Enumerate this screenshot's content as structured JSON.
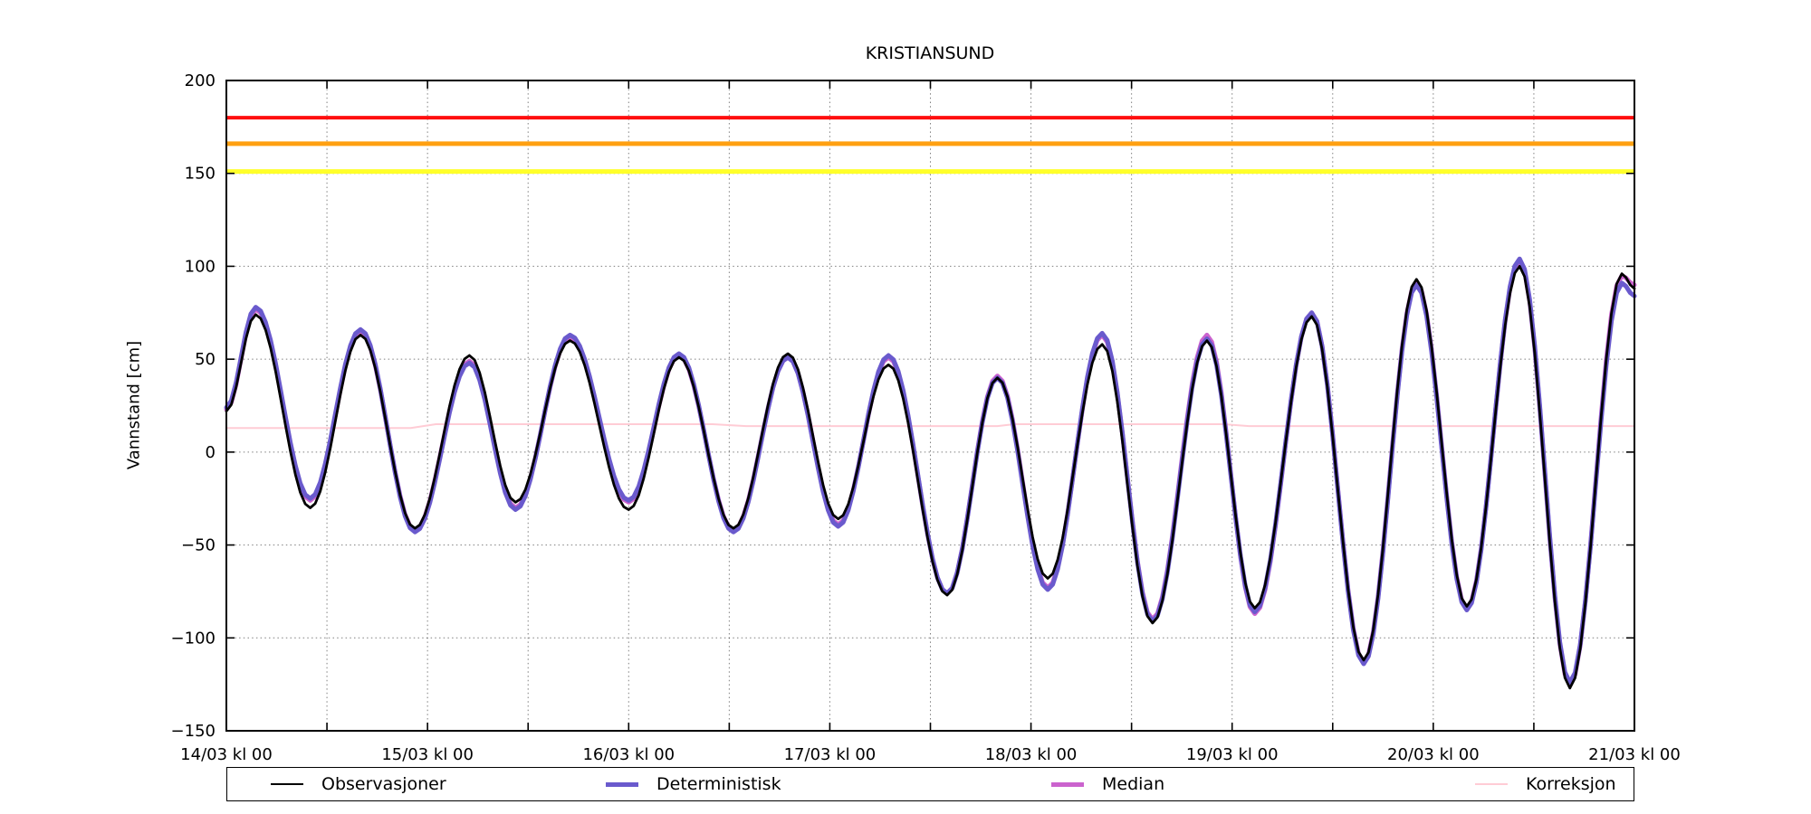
{
  "title": "KRISTIANSUND",
  "axes": {
    "ylabel": "Vannstand [cm]",
    "ylim": [
      -150,
      200
    ],
    "xlim_hours": [
      0,
      168
    ],
    "ytick_values": [
      -150,
      -100,
      -50,
      0,
      50,
      100,
      150,
      200
    ],
    "ytick_labels": [
      "−150",
      "−100",
      "−50",
      "0",
      "50",
      "100",
      "150",
      "200"
    ],
    "xtick_hours": [
      0,
      24,
      48,
      72,
      96,
      120,
      144,
      168
    ],
    "xtick_labels": [
      "14/03 kl 00",
      "15/03 kl 00",
      "16/03 kl 00",
      "17/03 kl 00",
      "18/03 kl 00",
      "19/03 kl 00",
      "20/03 kl 00",
      "21/03 kl 00"
    ],
    "minor_tick_hours_step": 12,
    "grid": {
      "horizontal_at": [
        150,
        100,
        50,
        0,
        -50,
        -100
      ],
      "vertical_every_hours": 12,
      "style": "dotted"
    }
  },
  "thresholds": [
    {
      "name": "red-warning-line",
      "value": 180,
      "color": "#FF0F0F",
      "width": 4
    },
    {
      "name": "orange-warning-line",
      "value": 166,
      "color": "#FFA011",
      "width": 5
    },
    {
      "name": "yellow-warning-line",
      "value": 151,
      "color": "#FFFF2A",
      "width": 5
    }
  ],
  "legend": {
    "items": [
      {
        "label": "Observasjoner",
        "color": "#000000",
        "line_width": 2.8
      },
      {
        "label": "Deterministisk",
        "color": "#6A5ACD",
        "line_width": 5
      },
      {
        "label": "Median",
        "color": "#CB63CE",
        "line_width": 5
      },
      {
        "label": "Korreksjon",
        "color": "#FFCCD5",
        "line_width": 2
      }
    ]
  },
  "chart_data": {
    "type": "line",
    "title": "KRISTIANSUND",
    "xlabel": "",
    "ylabel": "Vannstand [cm]",
    "x_unit": "hours since 14/03 kl 00",
    "ylim": [
      -150,
      200
    ],
    "xlim": [
      0,
      168
    ],
    "series": [
      {
        "name": "Observasjoner",
        "color": "#000000",
        "width": 2.8,
        "interpolation": "cosine",
        "extremes": [
          [
            0,
            22
          ],
          [
            3.5,
            74
          ],
          [
            10,
            -30
          ],
          [
            16,
            63
          ],
          [
            22.5,
            -41
          ],
          [
            29,
            52
          ],
          [
            34.5,
            -27
          ],
          [
            41,
            60
          ],
          [
            48,
            -31
          ],
          [
            54,
            51
          ],
          [
            60.5,
            -41
          ],
          [
            67,
            53
          ],
          [
            73,
            -36
          ],
          [
            79,
            47
          ],
          [
            86,
            -77
          ],
          [
            92,
            40
          ],
          [
            98,
            -68
          ],
          [
            104.5,
            58
          ],
          [
            110.5,
            -92
          ],
          [
            117,
            60
          ],
          [
            122.7,
            -84
          ],
          [
            129.5,
            73
          ],
          [
            135.7,
            -112
          ],
          [
            142,
            93
          ],
          [
            148,
            -83
          ],
          [
            154.3,
            100
          ],
          [
            160.3,
            -127
          ],
          [
            166.5,
            96
          ],
          [
            168,
            88
          ]
        ]
      },
      {
        "name": "Deterministisk",
        "color": "#6A5ACD",
        "width": 5,
        "interpolation": "cosine",
        "extremes": [
          [
            0,
            24
          ],
          [
            3.5,
            78
          ],
          [
            10,
            -25
          ],
          [
            16,
            66
          ],
          [
            22.5,
            -43
          ],
          [
            29,
            48
          ],
          [
            34.5,
            -31
          ],
          [
            41,
            63
          ],
          [
            48,
            -26
          ],
          [
            54,
            53
          ],
          [
            60.5,
            -43
          ],
          [
            67,
            51
          ],
          [
            73,
            -40
          ],
          [
            79,
            52
          ],
          [
            86,
            -76
          ],
          [
            92,
            40
          ],
          [
            98,
            -74
          ],
          [
            104.5,
            64
          ],
          [
            110.5,
            -91
          ],
          [
            117,
            61
          ],
          [
            122.7,
            -86
          ],
          [
            129.5,
            75
          ],
          [
            135.7,
            -114
          ],
          [
            142,
            90
          ],
          [
            148,
            -85
          ],
          [
            154.3,
            104
          ],
          [
            160.3,
            -124
          ],
          [
            166.5,
            91
          ],
          [
            168,
            84
          ]
        ]
      },
      {
        "name": "Median",
        "color": "#CB63CE",
        "width": 5,
        "interpolation": "cosine",
        "extremes": [
          [
            0,
            23
          ],
          [
            3.5,
            77
          ],
          [
            10,
            -26
          ],
          [
            16,
            65
          ],
          [
            22.5,
            -42
          ],
          [
            29,
            49
          ],
          [
            34.5,
            -30
          ],
          [
            41,
            62
          ],
          [
            48,
            -27
          ],
          [
            54,
            52
          ],
          [
            60.5,
            -42
          ],
          [
            67,
            51
          ],
          [
            73,
            -39
          ],
          [
            79,
            51
          ],
          [
            86,
            -76
          ],
          [
            92,
            41
          ],
          [
            98,
            -73
          ],
          [
            104.5,
            63
          ],
          [
            110.5,
            -90
          ],
          [
            117,
            63
          ],
          [
            122.7,
            -87
          ],
          [
            129.5,
            75
          ],
          [
            135.7,
            -113
          ],
          [
            142,
            91
          ],
          [
            148,
            -84
          ],
          [
            154.3,
            103
          ],
          [
            160.3,
            -125
          ],
          [
            166.5,
            95
          ],
          [
            168,
            90
          ]
        ]
      },
      {
        "name": "Korreksjon",
        "color": "#FFCCD5",
        "width": 2,
        "interpolation": "linear",
        "points": [
          [
            0,
            13
          ],
          [
            22,
            13
          ],
          [
            25,
            15
          ],
          [
            58,
            15
          ],
          [
            62,
            14
          ],
          [
            92,
            14
          ],
          [
            94,
            15
          ],
          [
            119,
            15
          ],
          [
            122,
            14
          ],
          [
            168,
            14
          ]
        ]
      }
    ],
    "threshold_lines": [
      {
        "name": "red",
        "value": 180
      },
      {
        "name": "orange",
        "value": 166
      },
      {
        "name": "yellow",
        "value": 151
      }
    ],
    "legend_position": "bottom, outside axes, 4 columns"
  }
}
